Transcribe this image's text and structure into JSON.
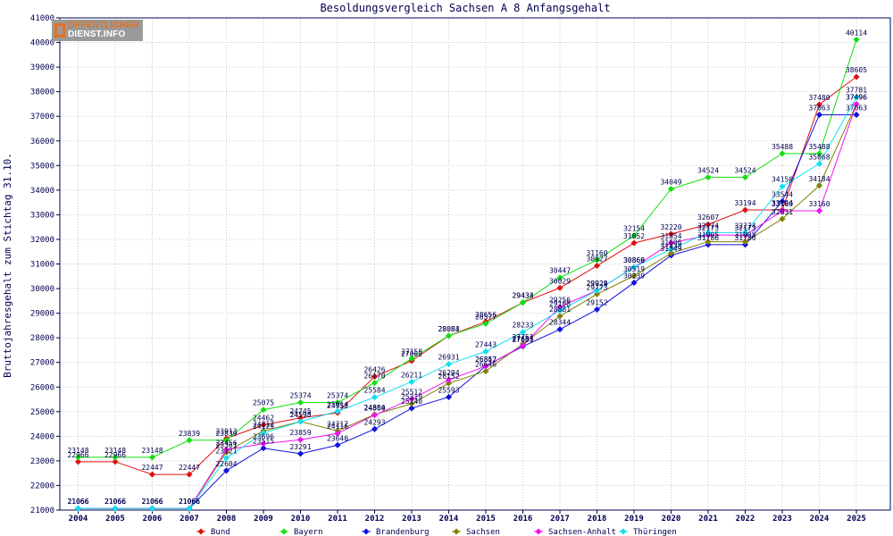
{
  "chart_data": {
    "type": "line",
    "title": "Besoldungsvergleich Sachsen A 8 Anfangsgehalt",
    "ylabel": "Bruttojahresgehalt zum Stichtag 31.10.",
    "xlabel": "",
    "ylim": [
      21000,
      41000
    ],
    "yticks": [
      21000,
      22000,
      23000,
      24000,
      25000,
      26000,
      27000,
      28000,
      29000,
      30000,
      31000,
      32000,
      33000,
      34000,
      35000,
      36000,
      37000,
      38000,
      39000,
      40000,
      41000
    ],
    "x": [
      "2004",
      "2005",
      "2006",
      "2007",
      "2008",
      "2009",
      "2010",
      "2011",
      "2012",
      "2013",
      "2014",
      "2015",
      "2016",
      "2017",
      "2018",
      "2019",
      "2020",
      "2021",
      "2022",
      "2023",
      "2024",
      "2025"
    ],
    "grid": true,
    "legend": "bottom",
    "series": [
      {
        "name": "Bund",
        "color": "#e01010",
        "values": [
          22966,
          22966,
          22447,
          22447,
          23913,
          24462,
          24745,
          24952,
          26426,
          27062,
          28083,
          28656,
          29434,
          30029,
          30927,
          31852,
          32220,
          32607,
          33194,
          33194,
          37480,
          38605
        ]
      },
      {
        "name": "Bayern",
        "color": "#10e010",
        "values": [
          23148,
          23148,
          23148,
          23839,
          23839,
          25075,
          25374,
          25374,
          26170,
          27158,
          28084,
          28577,
          29433,
          30447,
          31160,
          32154,
          34049,
          34524,
          34524,
          35488,
          35488,
          40114
        ]
      },
      {
        "name": "Brandenburg",
        "color": "#1010e0",
        "values": [
          21066,
          21066,
          21066,
          21066,
          22604,
          23515,
          23291,
          23640,
          24293,
          25140,
          25593,
          26852,
          27651,
          28344,
          29152,
          30239,
          31349,
          31786,
          31786,
          33544,
          37063,
          37063
        ]
      },
      {
        "name": "Sachsen",
        "color": "#808000",
        "values": [
          21066,
          21066,
          21066,
          21066,
          23361,
          24217,
          24598,
          24217,
          24884,
          25319,
          26152,
          26646,
          27751,
          28881,
          29773,
          30519,
          31438,
          31905,
          31905,
          32831,
          34184,
          37496
        ]
      },
      {
        "name": "Sachsen-Anhalt",
        "color": "#f010f0",
        "values": [
          21066,
          21066,
          21066,
          21066,
          23456,
          23696,
          23859,
          24116,
          24860,
          25512,
          26294,
          26847,
          27683,
          29256,
          29929,
          30866,
          31854,
          32173,
          32173,
          33160,
          33160,
          37496
        ]
      },
      {
        "name": "Thüringen",
        "color": "#10e0f0",
        "values": [
          21066,
          21066,
          21066,
          21066,
          23121,
          24129,
          24593,
          25014,
          25584,
          26211,
          26931,
          27443,
          28233,
          29108,
          29924,
          30869,
          31606,
          32274,
          32274,
          34150,
          35068,
          37781
        ]
      }
    ]
  },
  "logo": {
    "line1": "ÖFFENTLICHER",
    "line2": "DIENST.INFO"
  }
}
